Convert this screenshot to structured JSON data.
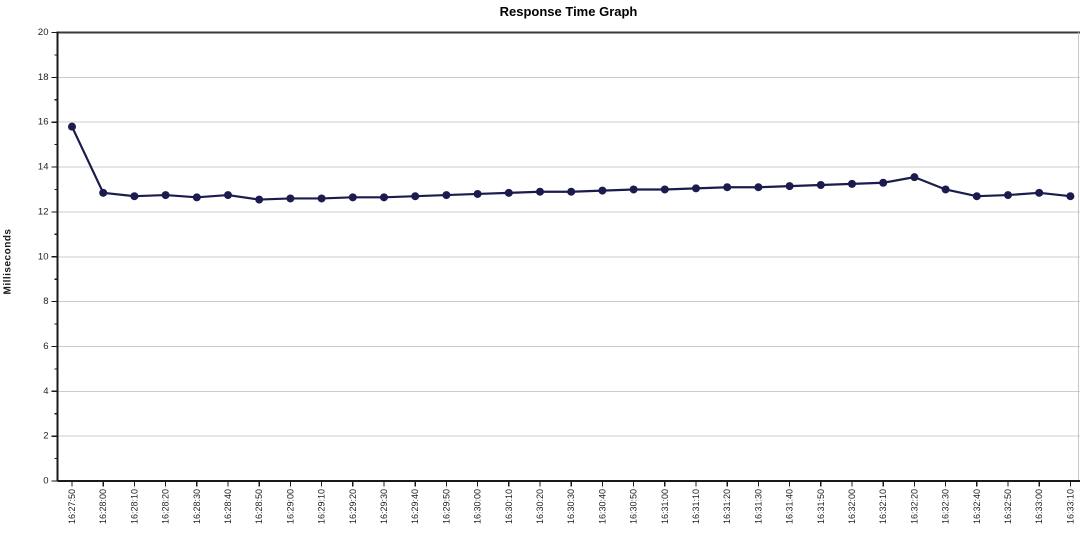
{
  "chart_data": {
    "type": "line",
    "title": "Response Time Graph",
    "ylabel": "Milliseconds",
    "xlabel": "",
    "ylim": [
      0,
      20
    ],
    "y_major_step": 2,
    "y_minor_step": 1,
    "grid": "horizontal-only",
    "legend": "none",
    "x": [
      "16:27:50",
      "16:28:00",
      "16:28:10",
      "16:28:20",
      "16:28:30",
      "16:28:40",
      "16:28:50",
      "16:29:00",
      "16:29:10",
      "16:29:20",
      "16:29:30",
      "16:29:40",
      "16:29:50",
      "16:30:00",
      "16:30:10",
      "16:30:20",
      "16:30:30",
      "16:30:40",
      "16:30:50",
      "16:31:00",
      "16:31:10",
      "16:31:20",
      "16:31:30",
      "16:31:40",
      "16:31:50",
      "16:32:00",
      "16:32:10",
      "16:32:20",
      "16:32:30",
      "16:32:40",
      "16:32:50",
      "16:33:00",
      "16:33:10"
    ],
    "values": [
      15.8,
      12.85,
      12.7,
      12.75,
      12.65,
      12.75,
      12.55,
      12.6,
      12.6,
      12.65,
      12.65,
      12.7,
      12.75,
      12.8,
      12.85,
      12.9,
      12.9,
      12.95,
      13.0,
      13.0,
      13.05,
      13.1,
      13.1,
      13.15,
      13.2,
      13.25,
      13.3,
      13.55,
      13.0,
      12.7,
      12.75,
      12.85,
      12.7
    ],
    "colors": {
      "line": "#1b1b4e",
      "point": "#1b1b4e",
      "grid": "#cccccc",
      "axis": "#1a1a1a",
      "frame_top": "#3a3a3a",
      "frame_right": "#c8c8c8",
      "tick_label": "#222222",
      "background": "#ffffff"
    }
  }
}
